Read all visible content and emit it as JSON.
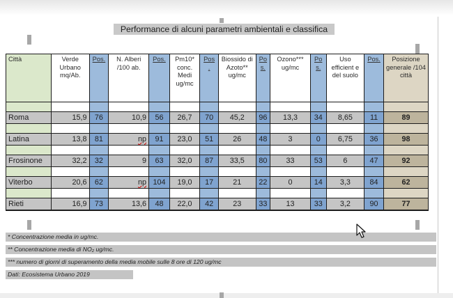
{
  "title": "Performance di alcuni parametri ambientali e classifica",
  "table": {
    "headers": [
      "Città",
      "Verde Urbano mq/Ab.",
      "Pos.",
      "N. Alberi /100 ab.",
      "Pos.",
      "Pm10* conc. Medi ug/mc",
      "Pos .",
      "Biossido di Azoto** ug/mc",
      "Po s.",
      "Ozono*** ug/mc",
      "Po s.",
      "Uso efficient e del suolo",
      "Pos.",
      "Posizione generale /104 città"
    ],
    "rows": [
      [
        "Roma",
        "15,9",
        "76",
        "10,9",
        "56",
        "26,7",
        "70",
        "45,2",
        "96",
        "13,3",
        "34",
        "8,65",
        "11",
        "89"
      ],
      [
        "Latina",
        "13,8",
        "81",
        "np",
        "91",
        "23,0",
        "51",
        "26",
        "48",
        "3",
        "0",
        "6,75",
        "36",
        "98"
      ],
      [
        "Frosinone",
        "32,2",
        "32",
        "9",
        "63",
        "32,0",
        "87",
        "33,5",
        "80",
        "33",
        "53",
        "6",
        "47",
        "92"
      ],
      [
        "Viterbo",
        "20,6",
        "62",
        "np",
        "104",
        "19,0",
        "17",
        "21",
        "22",
        "0",
        "14",
        "3,3",
        "84",
        "62"
      ],
      [
        "Rieti",
        "16,9",
        "73",
        "13,6",
        "48",
        "22,0",
        "42",
        "23",
        "33",
        "13",
        "33",
        "3,2",
        "90",
        "77"
      ]
    ]
  },
  "notes": [
    "* Concentrazione media in  ug/mc.",
    "** Concentrazione media di NO₂ ug/mc.",
    "*** numero di giorni di superamento della media mobile sulle 8 ore di 120 ug/mc",
    "Dati: Ecosistema Urbano 2019"
  ],
  "colors": {
    "city_column": "#dbe8cb",
    "position_column": "#9dbbdc",
    "position_cell": "#7fa3cf",
    "rank_column": "#ddd6c4",
    "data_row": "#c5c5c5",
    "note_band": "#c4c4c4"
  },
  "icons": {
    "cursor": "mouse-pointer-icon"
  }
}
